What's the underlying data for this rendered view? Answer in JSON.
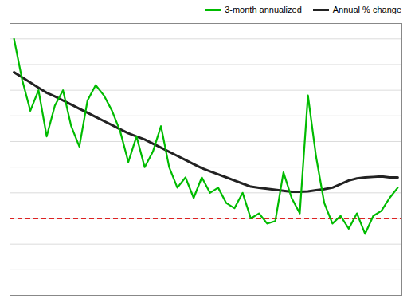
{
  "chart_data": {
    "type": "line",
    "x": [
      0,
      1,
      2,
      3,
      4,
      5,
      6,
      7,
      8,
      9,
      10,
      11,
      12,
      13,
      14,
      15,
      16,
      17,
      18,
      19,
      20,
      21,
      22,
      23,
      24,
      25,
      26,
      27,
      28,
      29,
      30,
      31,
      32,
      33,
      34,
      35,
      36,
      37,
      38,
      39,
      40,
      41,
      42,
      43,
      44,
      45,
      46,
      47
    ],
    "series": [
      {
        "name": "3-month annualized",
        "color": "#00bb00",
        "line_style": "solid",
        "values": [
          5.5,
          4.7,
          4.1,
          4.5,
          3.6,
          4.2,
          4.5,
          3.8,
          3.4,
          4.3,
          4.6,
          4.4,
          4.1,
          3.7,
          3.1,
          3.6,
          3.0,
          3.3,
          3.8,
          3.0,
          2.6,
          2.8,
          2.4,
          2.8,
          2.5,
          2.6,
          2.3,
          2.2,
          2.5,
          2.0,
          2.1,
          1.9,
          1.95,
          2.9,
          2.4,
          2.1,
          4.4,
          3.2,
          2.3,
          1.9,
          2.05,
          1.8,
          2.1,
          1.7,
          2.05,
          2.15,
          2.4,
          2.6
        ]
      },
      {
        "name": "Annual % change",
        "color": "#222222",
        "line_style": "solid",
        "values": [
          4.85,
          4.75,
          4.65,
          4.55,
          4.45,
          4.38,
          4.3,
          4.22,
          4.14,
          4.06,
          3.98,
          3.9,
          3.82,
          3.74,
          3.66,
          3.6,
          3.54,
          3.46,
          3.38,
          3.3,
          3.22,
          3.14,
          3.06,
          2.98,
          2.92,
          2.86,
          2.8,
          2.74,
          2.68,
          2.62,
          2.6,
          2.58,
          2.56,
          2.54,
          2.52,
          2.52,
          2.53,
          2.55,
          2.57,
          2.6,
          2.67,
          2.74,
          2.78,
          2.8,
          2.81,
          2.82,
          2.8,
          2.8
        ]
      }
    ],
    "hline": {
      "value": 2.0,
      "color": "#dd2222",
      "line_style": "dashed"
    },
    "xlim": [
      -0.5,
      47.5
    ],
    "ylim": [
      0.5,
      5.8
    ],
    "yticks": [
      1.0,
      1.5,
      2.0,
      2.5,
      3.0,
      3.5,
      4.0,
      4.5,
      5.0,
      5.5
    ],
    "grid": true,
    "tick_labels": false,
    "legend": "upper right"
  }
}
